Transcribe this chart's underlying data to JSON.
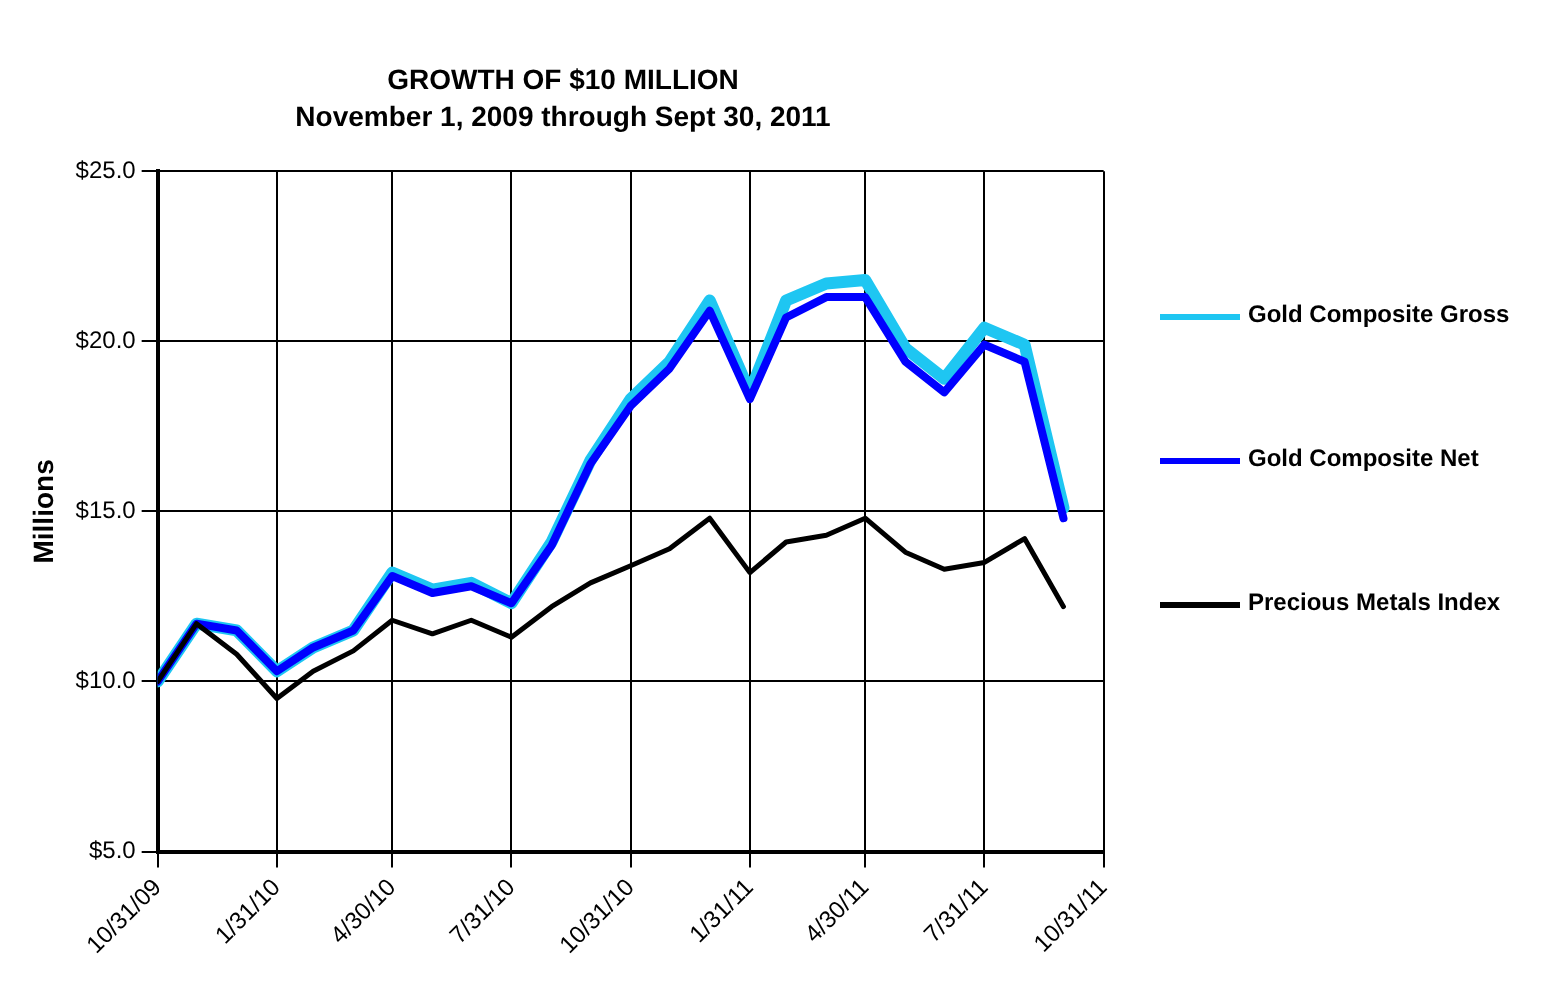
{
  "chart_data": {
    "type": "line",
    "title": "GROWTH OF $10 MILLION",
    "subtitle": "November 1, 2009 through Sept 30, 2011",
    "ylabel": "Millions",
    "x": [
      "2009-10-31",
      "2009-11-30",
      "2009-12-31",
      "2010-01-31",
      "2010-02-28",
      "2010-03-31",
      "2010-04-30",
      "2010-05-31",
      "2010-06-30",
      "2010-07-31",
      "2010-08-31",
      "2010-09-30",
      "2010-10-31",
      "2010-11-30",
      "2010-12-31",
      "2011-01-31",
      "2011-02-28",
      "2011-03-31",
      "2011-04-30",
      "2011-05-31",
      "2011-06-30",
      "2011-07-31",
      "2011-08-31",
      "2011-09-30"
    ],
    "series": [
      {
        "name": "Gold Composite Gross",
        "color": "#1ec6f2",
        "values": [
          10.0,
          11.7,
          11.5,
          10.3,
          11.0,
          11.5,
          13.2,
          12.7,
          12.9,
          12.3,
          14.1,
          16.5,
          18.3,
          19.4,
          21.2,
          18.5,
          21.2,
          21.7,
          21.8,
          19.8,
          18.9,
          20.4,
          19.9,
          15.1
        ]
      },
      {
        "name": "Gold Composite Net",
        "color": "#0000ff",
        "values": [
          10.0,
          11.7,
          11.5,
          10.3,
          11.0,
          11.5,
          13.1,
          12.6,
          12.8,
          12.3,
          14.0,
          16.4,
          18.1,
          19.2,
          20.9,
          18.3,
          20.7,
          21.3,
          21.3,
          19.4,
          18.5,
          19.9,
          19.4,
          14.8
        ]
      },
      {
        "name": "Precious Metals Index",
        "color": "#000000",
        "values": [
          10.0,
          11.7,
          10.8,
          9.5,
          10.3,
          10.9,
          11.8,
          11.4,
          11.8,
          11.3,
          12.2,
          12.9,
          13.4,
          13.9,
          14.8,
          13.2,
          14.1,
          14.3,
          14.8,
          13.8,
          13.3,
          13.5,
          14.2,
          12.2
        ]
      }
    ],
    "xlim": [
      "2009-10-31",
      "2011-10-31"
    ],
    "xticks": [
      {
        "value": "2009-10-31",
        "label": "10/31/09"
      },
      {
        "value": "2010-01-31",
        "label": "1/31/10"
      },
      {
        "value": "2010-04-30",
        "label": "4/30/10"
      },
      {
        "value": "2010-07-31",
        "label": "7/31/10"
      },
      {
        "value": "2010-10-31",
        "label": "10/31/10"
      },
      {
        "value": "2011-01-31",
        "label": "1/31/11"
      },
      {
        "value": "2011-04-30",
        "label": "4/30/11"
      },
      {
        "value": "2011-07-31",
        "label": "7/31/11"
      },
      {
        "value": "2011-10-31",
        "label": "10/31/11"
      }
    ],
    "ylim": [
      5,
      25
    ],
    "yticks": [
      {
        "value": 5,
        "label": "$5.0"
      },
      {
        "value": 10,
        "label": "$10.0"
      },
      {
        "value": 15,
        "label": "$15.0"
      },
      {
        "value": 20,
        "label": "$20.0"
      },
      {
        "value": 25,
        "label": "$25.0"
      }
    ],
    "grid": true,
    "legend": "right",
    "marker": "none",
    "line_style": "solid"
  }
}
